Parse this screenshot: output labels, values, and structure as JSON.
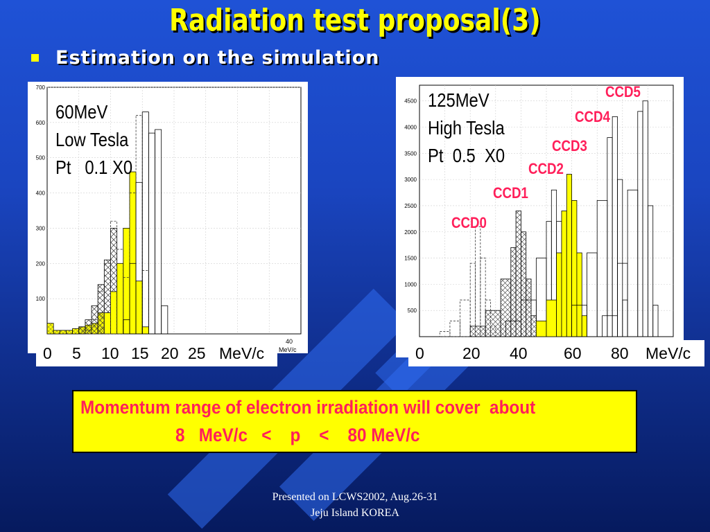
{
  "title": "Radiation test proposal(3)",
  "bullet": "Estimation on the simulation",
  "left_chart": {
    "lines": [
      "60MeV",
      "Low Tesla",
      "Pt   0.1 X0"
    ],
    "y_ticks": [
      "700",
      "600",
      "500",
      "400",
      "300",
      "200",
      "100"
    ],
    "x_axis_text": "40",
    "x_unit_small": "MeV/c",
    "tick_labels": [
      "0",
      "5",
      "10",
      "15",
      "20",
      "25",
      "MeV/c"
    ]
  },
  "right_chart": {
    "lines": [
      "125MeV",
      "High Tesla",
      "Pt  0.5  X0"
    ],
    "y_ticks": [
      "4500",
      "4000",
      "3500",
      "3000",
      "2500",
      "2000",
      "1500",
      "1000",
      "500"
    ],
    "ccd_labels": [
      "CCD0",
      "CCD1",
      "CCD2",
      "CCD3",
      "CCD4",
      "CCD5"
    ],
    "tick_labels": [
      "0",
      "20",
      "40",
      "60",
      "80",
      "MeV/c"
    ]
  },
  "note": {
    "line1": "Momentum range of electron irradiation will cover  about",
    "line2": "8   MeV/c   <    p    <    80 MeV/c"
  },
  "footer": {
    "line1": "Presented on LCWS2002, Aug.26-31",
    "line2": "Jeju Island KOREA"
  },
  "colors": {
    "title": "#ffff00",
    "ccd_label": "#ff1f5a",
    "highlight": "#ffff00"
  },
  "chart_data": [
    {
      "type": "bar",
      "description_lines": [
        "60MeV",
        "Low Tesla",
        "Pt   0.1 X0"
      ],
      "ylim": [
        0,
        700
      ],
      "xlabel": "MeV/c",
      "xlim": [
        0,
        40
      ],
      "series": [
        {
          "values": [
            [
              0,
              30
            ],
            [
              1,
              10
            ],
            [
              2,
              10
            ],
            [
              3,
              10
            ],
            [
              4,
              15
            ],
            [
              5,
              20
            ],
            [
              6,
              25
            ],
            [
              7,
              30
            ],
            [
              8,
              60
            ],
            [
              9,
              40
            ],
            [
              10,
              20
            ],
            [
              11,
              15
            ],
            [
              12,
              10
            ],
            [
              13,
              5
            ]
          ]
        },
        {
          "values": [
            [
              5,
              20
            ],
            [
              6,
              40
            ],
            [
              7,
              80
            ],
            [
              8,
              140
            ],
            [
              9,
              210
            ],
            [
              10,
              300
            ],
            [
              11,
              180
            ],
            [
              12,
              60
            ],
            [
              13,
              10
            ]
          ]
        },
        {
          "values": [
            [
              9,
              60
            ],
            [
              10,
              120
            ],
            [
              11,
              200
            ],
            [
              12,
              300
            ],
            [
              13,
              460
            ],
            [
              14,
              150
            ],
            [
              15,
              20
            ]
          ]
        },
        {
          "values": [
            [
              6,
              10
            ],
            [
              7,
              40
            ],
            [
              8,
              120
            ],
            [
              9,
              200
            ],
            [
              10,
              320
            ],
            [
              11,
              240
            ],
            [
              12,
              160
            ],
            [
              13,
              400
            ],
            [
              14,
              620
            ],
            [
              15,
              180
            ]
          ]
        },
        {
          "values": [
            [
              12,
              40
            ],
            [
              13,
              200
            ],
            [
              14,
              430
            ],
            [
              15,
              630
            ],
            [
              16,
              570
            ],
            [
              17,
              580
            ],
            [
              18,
              80
            ]
          ]
        }
      ]
    },
    {
      "type": "bar",
      "description_lines": [
        "125MeV",
        "High Tesla",
        "Pt  0.5  X0"
      ],
      "ylim": [
        0,
        4800
      ],
      "xlabel": "MeV/c",
      "xlim": [
        0,
        100
      ],
      "series": [
        {
          "name": "CCD0",
          "values": [
            [
              8,
              100
            ],
            [
              12,
              300
            ],
            [
              16,
              700
            ],
            [
              20,
              1400
            ],
            [
              22,
              2100
            ],
            [
              24,
              1500
            ],
            [
              26,
              700
            ],
            [
              28,
              200
            ]
          ]
        },
        {
          "name": "CCD1",
          "values": [
            [
              20,
              200
            ],
            [
              26,
              500
            ],
            [
              32,
              1100
            ],
            [
              36,
              1700
            ],
            [
              38,
              2400
            ],
            [
              40,
              2000
            ],
            [
              42,
              1100
            ],
            [
              44,
              400
            ],
            [
              46,
              100
            ]
          ]
        },
        {
          "name": "CCD2",
          "values": [
            [
              34,
              300
            ],
            [
              40,
              700
            ],
            [
              46,
              1500
            ],
            [
              50,
              2200
            ],
            [
              52,
              2800
            ],
            [
              54,
              2200
            ],
            [
              56,
              1300
            ],
            [
              58,
              300
            ]
          ]
        },
        {
          "name": "CCD3",
          "values": [
            [
              46,
              300
            ],
            [
              50,
              700
            ],
            [
              54,
              1600
            ],
            [
              56,
              2400
            ],
            [
              58,
              3100
            ],
            [
              60,
              2600
            ],
            [
              62,
              1600
            ],
            [
              64,
              400
            ]
          ]
        },
        {
          "name": "CCD4",
          "values": [
            [
              60,
              600
            ],
            [
              66,
              1600
            ],
            [
              70,
              2600
            ],
            [
              74,
              3800
            ],
            [
              76,
              4200
            ],
            [
              78,
              3000
            ],
            [
              80,
              700
            ]
          ]
        },
        {
          "name": "CCD5",
          "values": [
            [
              72,
              400
            ],
            [
              78,
              1400
            ],
            [
              82,
              2800
            ],
            [
              86,
              4300
            ],
            [
              88,
              4500
            ],
            [
              90,
              2500
            ],
            [
              92,
              600
            ]
          ]
        }
      ]
    }
  ]
}
